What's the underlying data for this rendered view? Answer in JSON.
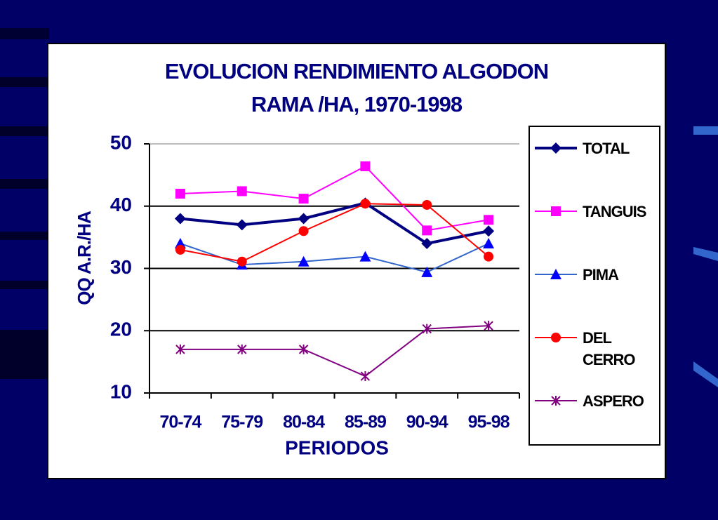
{
  "chart_data": {
    "type": "line",
    "title": [
      "EVOLUCION RENDIMIENTO ALGODON",
      "RAMA /HA, 1970-1998"
    ],
    "x_label": "PERIODOS",
    "y_label": "QQ A.R./HA",
    "categories": [
      "70-74",
      "75-79",
      "80-84",
      "85-89",
      "90-94",
      "95-98"
    ],
    "ylim": [
      10,
      50
    ],
    "yticks": [
      10,
      20,
      30,
      40,
      50
    ],
    "grid": true,
    "legend": "right",
    "series": [
      {
        "name": "TOTAL",
        "color": "#000080",
        "marker": "diamond",
        "values": [
          38,
          37,
          38,
          40.5,
          34,
          36
        ]
      },
      {
        "name": "TANGUIS",
        "color": "#ff00ff",
        "marker": "square",
        "values": [
          42,
          42.4,
          41.2,
          46.4,
          36.1,
          37.8
        ]
      },
      {
        "name": "PIMA",
        "color": "#3366cc",
        "marker": "triangle",
        "values": [
          34,
          30.6,
          31.1,
          31.9,
          29.4,
          34
        ]
      },
      {
        "name": "DEL CERRO",
        "color": "#ff0000",
        "marker": "circle",
        "values": [
          33,
          31.1,
          36,
          40.4,
          40.2,
          31.9
        ]
      },
      {
        "name": "ASPERO",
        "color": "#800080",
        "marker": "asterisk",
        "values": [
          17,
          17,
          17,
          12.7,
          20.3,
          20.8
        ]
      }
    ]
  }
}
